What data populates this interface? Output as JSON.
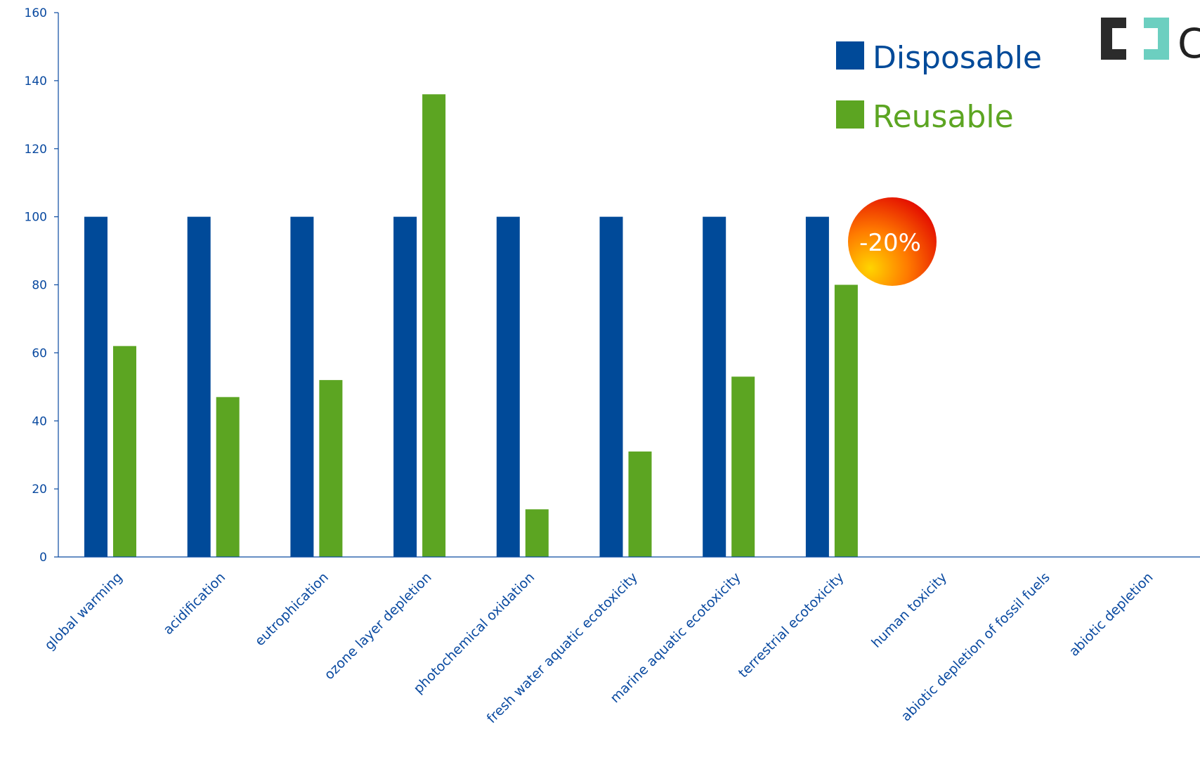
{
  "colors": {
    "axis": "#0a4aa0",
    "disposable": "#004a99",
    "reusable": "#5ca522",
    "logo_dark": "#2b2b2b",
    "logo_teal": "#6ccfc0"
  },
  "logo": {
    "icon": "bracket-logo-icon",
    "text": "C"
  },
  "badge": {
    "text": "-20%",
    "category": "terrestrial ecotoxicity",
    "colors": [
      "#ffd400",
      "#ff7a00",
      "#e00000"
    ]
  },
  "chart_data": {
    "type": "bar",
    "ylim": [
      0,
      160
    ],
    "yticks": [
      0,
      20,
      40,
      60,
      80,
      100,
      120,
      140,
      160
    ],
    "grid": false,
    "legend_position": "top-right",
    "categories": [
      "global warming",
      "acidification",
      "eutrophication",
      "ozone layer depletion",
      "photochemical oxidation",
      "fresh water aquatic ecotoxicity",
      "marine aquatic ecotoxicity",
      "terrestrial ecotoxicity",
      "human toxicity",
      "abiotic depletion of fossil fuels",
      "abiotic depletion"
    ],
    "series": [
      {
        "name": "Disposable",
        "color": "#004a99",
        "values": [
          100,
          100,
          100,
          100,
          100,
          100,
          100,
          100,
          null,
          null,
          null
        ]
      },
      {
        "name": "Reusable",
        "color": "#5ca522",
        "values": [
          62,
          47,
          52,
          136,
          14,
          31,
          53,
          80,
          null,
          null,
          null
        ]
      }
    ]
  }
}
